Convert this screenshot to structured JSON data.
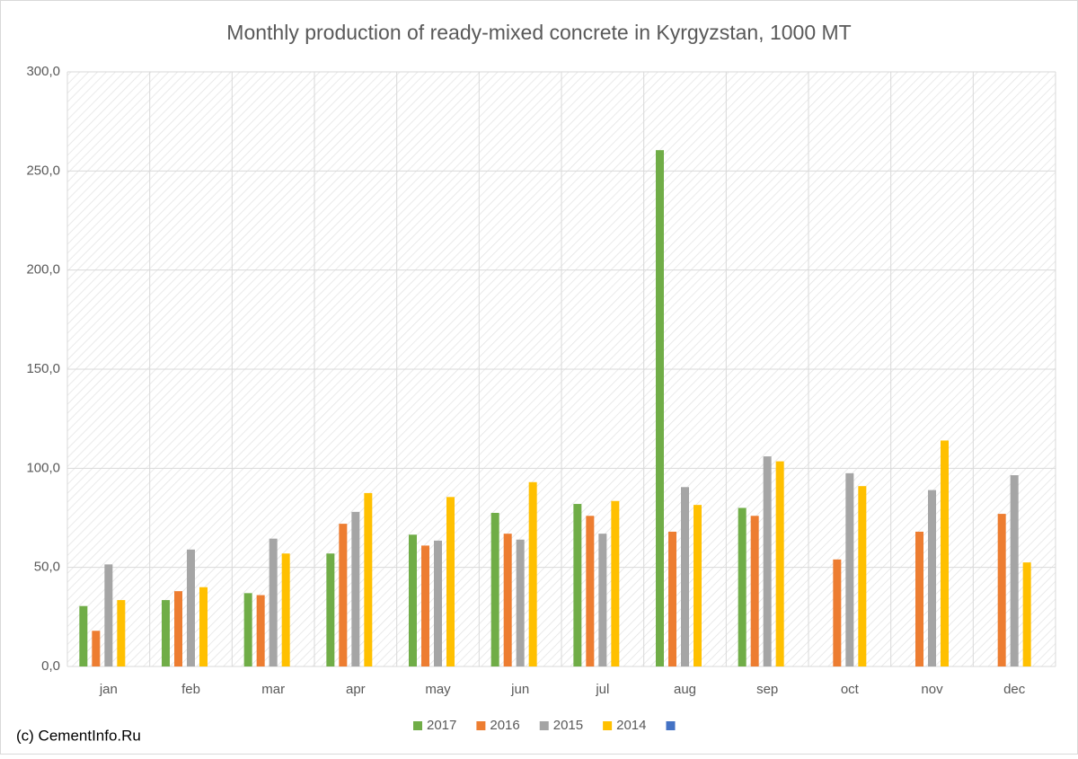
{
  "chart_data": {
    "type": "bar",
    "title": "Monthly production of ready-mixed concrete in Kyrgyzstan, 1000 MT",
    "annotation": "(c) CementInfo.Ru",
    "categories": [
      "jan",
      "feb",
      "mar",
      "apr",
      "may",
      "jun",
      "jul",
      "aug",
      "sep",
      "oct",
      "nov",
      "dec"
    ],
    "series": [
      {
        "name": "2017",
        "color": "#70ad47",
        "values": [
          30.5,
          33.5,
          37,
          57,
          66.5,
          77.5,
          82,
          260.5,
          80,
          null,
          null,
          null
        ]
      },
      {
        "name": "2016",
        "color": "#ed7d31",
        "values": [
          18,
          38,
          36,
          72,
          61,
          67,
          76,
          68,
          76,
          54,
          68,
          77
        ]
      },
      {
        "name": "2015",
        "color": "#a5a5a5",
        "values": [
          51.5,
          59,
          64.5,
          78,
          63.5,
          64,
          67,
          90.5,
          106,
          97.5,
          89,
          96.5
        ]
      },
      {
        "name": "2014",
        "color": "#ffc000",
        "values": [
          33.5,
          40,
          57,
          87.5,
          85.5,
          93,
          83.5,
          81.5,
          103.5,
          91,
          114,
          52.5
        ]
      }
    ],
    "ylim": [
      0,
      300
    ],
    "yticks": [
      {
        "value": 0,
        "label": "0,0"
      },
      {
        "value": 50,
        "label": "50,0"
      },
      {
        "value": 100,
        "label": "100,0"
      },
      {
        "value": 150,
        "label": "150,0"
      },
      {
        "value": 200,
        "label": "200,0"
      },
      {
        "value": 250,
        "label": "250,0"
      },
      {
        "value": 300,
        "label": "300,0"
      }
    ],
    "grid": true
  }
}
